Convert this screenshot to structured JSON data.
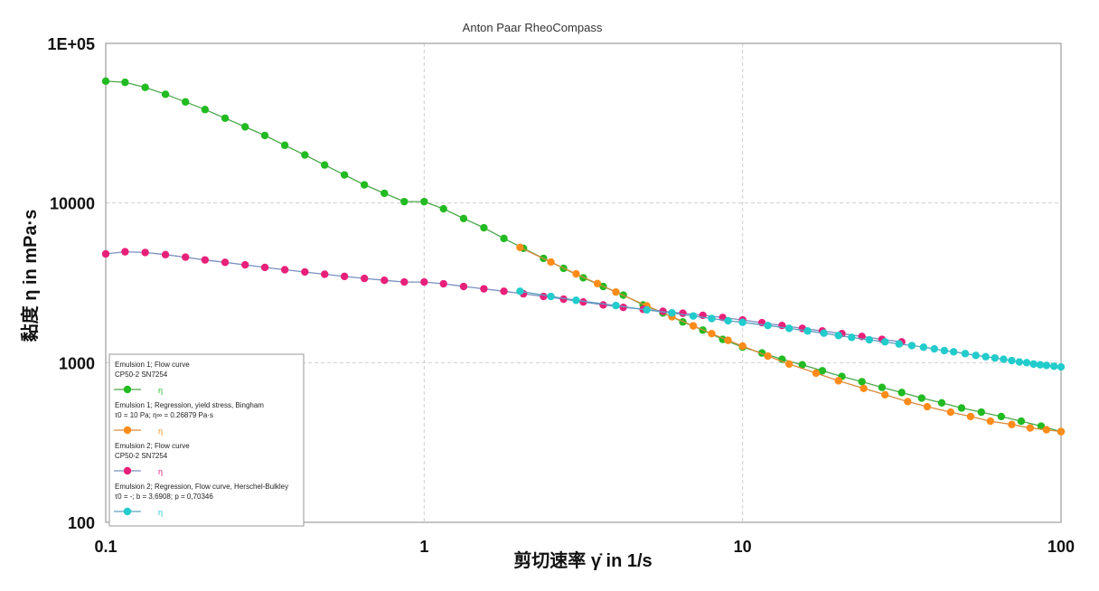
{
  "chart_data": {
    "type": "line",
    "title": "Anton Paar RheoCompass",
    "xlabel": "剪切速率 γ̇ in 1/s",
    "ylabel": "黏度 η in mPa·s",
    "x_scale": "log",
    "y_scale": "log",
    "xlim": [
      0.1,
      100
    ],
    "ylim": [
      100,
      100000
    ],
    "x_ticks": [
      0.1,
      1,
      10,
      100
    ],
    "x_tick_labels": [
      "0.1",
      "1",
      "10",
      "100"
    ],
    "y_ticks": [
      100,
      1000,
      10000,
      100000
    ],
    "y_tick_labels": [
      "100",
      "1000",
      "10000",
      "1E+05"
    ],
    "grid": true,
    "legend_position": "bottom-left",
    "series": [
      {
        "name": "Emulsion 1; Flow curve",
        "legend_lines": [
          "Emulsion 1; Flow curve",
          "CP50-2 SN7254"
        ],
        "legend_symbol": "η",
        "color": "#22bb22",
        "x": [
          0.1,
          0.115,
          0.133,
          0.154,
          0.178,
          0.205,
          0.237,
          0.274,
          0.316,
          0.365,
          0.422,
          0.487,
          0.562,
          0.649,
          0.75,
          0.866,
          1.0,
          1.15,
          1.33,
          1.54,
          1.78,
          2.05,
          2.37,
          2.74,
          3.16,
          3.65,
          4.22,
          4.87,
          5.62,
          6.49,
          7.5,
          8.66,
          10.0,
          11.5,
          13.3,
          15.4,
          17.8,
          20.5,
          23.7,
          27.4,
          31.6,
          36.5,
          42.2,
          48.7,
          56.2,
          64.9,
          75.0,
          86.6,
          100.0
        ],
        "y": [
          58000,
          57000,
          53000,
          48000,
          43000,
          38500,
          34000,
          30000,
          26500,
          23000,
          20000,
          17300,
          15000,
          13000,
          11500,
          10200,
          10200,
          9200,
          8000,
          7000,
          6000,
          5200,
          4500,
          3900,
          3400,
          3000,
          2650,
          2300,
          2050,
          1800,
          1600,
          1400,
          1250,
          1150,
          1050,
          970,
          890,
          820,
          760,
          700,
          650,
          600,
          560,
          520,
          490,
          460,
          430,
          400,
          370
        ]
      },
      {
        "name": "Emulsion 1; Regression, yield stress, Bingham",
        "legend_lines": [
          "Emulsion 1; Regression, yield stress, Bingham",
          "τ0 = 10 Pa; η∞ = 0.26879 Pa·s"
        ],
        "legend_symbol": "η",
        "color": "#ff8c1a",
        "x": [
          2.0,
          2.5,
          3.0,
          3.5,
          4.0,
          5.0,
          6.0,
          7.0,
          8.0,
          9.0,
          10,
          12,
          14,
          17,
          20,
          24,
          28,
          33,
          38,
          45,
          52,
          60,
          70,
          80,
          90,
          100
        ],
        "y": [
          5270,
          4270,
          3600,
          3130,
          2770,
          2270,
          1940,
          1700,
          1520,
          1380,
          1270,
          1100,
          980,
          860,
          770,
          690,
          630,
          570,
          530,
          490,
          460,
          430,
          410,
          390,
          380,
          370
        ]
      },
      {
        "name": "Emulsion 2; Flow curve",
        "legend_lines": [
          "Emulsion 2; Flow curve",
          "CP50-2 SN7254"
        ],
        "legend_symbol": "η",
        "color": "#e8207a",
        "x": [
          0.1,
          0.115,
          0.133,
          0.154,
          0.178,
          0.205,
          0.237,
          0.274,
          0.316,
          0.365,
          0.422,
          0.487,
          0.562,
          0.649,
          0.75,
          0.866,
          1.0,
          1.15,
          1.33,
          1.54,
          1.78,
          2.05,
          2.37,
          2.74,
          3.16,
          3.65,
          4.22,
          4.87,
          5.62,
          6.49,
          7.5,
          8.66,
          10.0,
          11.5,
          13.3,
          15.4,
          17.8,
          20.5,
          23.7,
          27.4,
          31.6
        ],
        "y": [
          4800,
          4950,
          4900,
          4750,
          4580,
          4400,
          4250,
          4100,
          3950,
          3820,
          3700,
          3580,
          3470,
          3370,
          3280,
          3200,
          3200,
          3120,
          3000,
          2900,
          2800,
          2700,
          2600,
          2500,
          2400,
          2300,
          2220,
          2160,
          2100,
          2040,
          1980,
          1920,
          1850,
          1780,
          1710,
          1640,
          1580,
          1520,
          1460,
          1400,
          1350
        ]
      },
      {
        "name": "Emulsion 2; Regression, Flow curve, Herschel-Bulkley",
        "legend_lines": [
          "Emulsion 2; Regression, Flow curve, Herschel-Bulkley",
          "τ0 = -; b = 3,6908; p = 0,70346"
        ],
        "legend_symbol": "η",
        "color": "#22cccc",
        "x": [
          2.0,
          2.5,
          3.0,
          4.0,
          5.0,
          6.0,
          7.0,
          8.0,
          9.0,
          10,
          12,
          14,
          16,
          18,
          20,
          22,
          25,
          28,
          31,
          34,
          37,
          40,
          43,
          46,
          50,
          54,
          58,
          62,
          66,
          70,
          74,
          78,
          82,
          86,
          90,
          95,
          100
        ],
        "y": [
          2800,
          2600,
          2460,
          2280,
          2140,
          2050,
          1960,
          1890,
          1830,
          1790,
          1710,
          1640,
          1580,
          1530,
          1480,
          1440,
          1390,
          1350,
          1310,
          1280,
          1250,
          1220,
          1190,
          1170,
          1140,
          1110,
          1090,
          1070,
          1050,
          1030,
          1010,
          1000,
          980,
          970,
          960,
          950,
          940
        ]
      }
    ]
  }
}
